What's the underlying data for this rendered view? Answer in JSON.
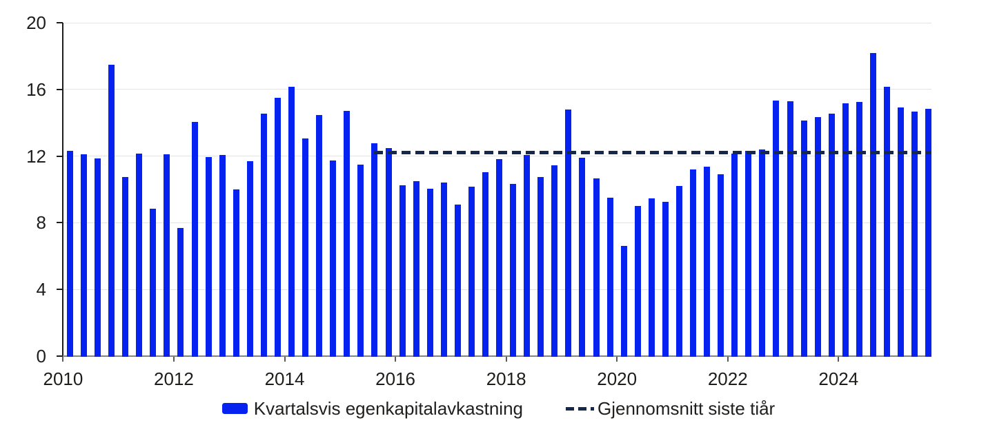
{
  "colors": {
    "bar_blue": "#0522F0",
    "average_line_navy": "#16294C",
    "gridline_gray": "#E3E3E3",
    "x_axis_gray": "#828282",
    "y_axis_black": "#1C1C1C",
    "text_dark": "#1D1D1B"
  },
  "chart_data": {
    "type": "bar",
    "title": "",
    "xlabel": "",
    "ylabel": "",
    "ylim": [
      0,
      20
    ],
    "yticks": [
      0,
      4,
      8,
      12,
      16,
      20
    ],
    "xticks": [
      2010,
      2012,
      2014,
      2016,
      2018,
      2020,
      2022,
      2024
    ],
    "grid": "horizontal-light",
    "legend_position": "bottom-center",
    "categories": [
      "2010Q1",
      "2010Q2",
      "2010Q3",
      "2010Q4",
      "2011Q1",
      "2011Q2",
      "2011Q3",
      "2011Q4",
      "2012Q1",
      "2012Q2",
      "2012Q3",
      "2012Q4",
      "2013Q1",
      "2013Q2",
      "2013Q3",
      "2013Q4",
      "2014Q1",
      "2014Q2",
      "2014Q3",
      "2014Q4",
      "2015Q1",
      "2015Q2",
      "2015Q3",
      "2015Q4",
      "2016Q1",
      "2016Q2",
      "2016Q3",
      "2016Q4",
      "2017Q1",
      "2017Q2",
      "2017Q3",
      "2017Q4",
      "2018Q1",
      "2018Q2",
      "2018Q3",
      "2018Q4",
      "2019Q1",
      "2019Q2",
      "2019Q3",
      "2019Q4",
      "2020Q1",
      "2020Q2",
      "2020Q3",
      "2020Q4",
      "2021Q1",
      "2021Q2",
      "2021Q3",
      "2021Q4",
      "2022Q1",
      "2022Q2",
      "2022Q3",
      "2022Q4",
      "2023Q1",
      "2023Q2",
      "2023Q3",
      "2023Q4",
      "2024Q1",
      "2024Q2",
      "2024Q3",
      "2024Q4",
      "2025Q1",
      "2025Q2",
      "2025Q3"
    ],
    "series": [
      {
        "name": "Kvartalsvis egenkapitalavkastning",
        "type": "bar",
        "color": "#0522F0",
        "values": [
          12.3,
          12.1,
          11.85,
          17.5,
          10.75,
          12.15,
          8.85,
          12.1,
          7.7,
          14.05,
          11.95,
          12.05,
          10.0,
          11.7,
          14.55,
          15.5,
          16.15,
          13.05,
          14.45,
          11.75,
          14.7,
          11.5,
          12.75,
          12.5,
          10.25,
          10.5,
          10.05,
          10.4,
          9.1,
          10.15,
          11.05,
          11.8,
          10.35,
          12.05,
          10.75,
          11.45,
          14.8,
          11.9,
          10.65,
          9.5,
          6.6,
          9.0,
          9.45,
          9.25,
          10.2,
          11.2,
          11.35,
          10.9,
          12.15,
          12.3,
          12.4,
          15.35,
          15.3,
          14.15,
          14.35,
          14.55,
          15.15,
          15.25,
          18.2,
          16.15,
          14.9,
          14.65,
          14.85
        ]
      },
      {
        "name": "Gjennomsnitt siste tiår",
        "type": "dashed-line",
        "color": "#16294C",
        "value": 12.2,
        "from": "2015Q3",
        "to": "2025Q3"
      }
    ]
  }
}
